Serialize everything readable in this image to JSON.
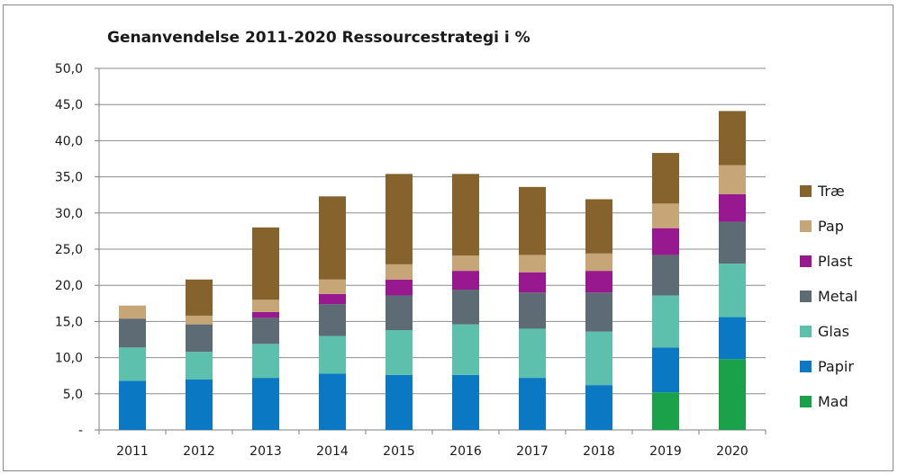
{
  "chart_data": {
    "type": "bar",
    "stacked": true,
    "title": "Genanvendelse 2011-2020 Ressourcestrategi i %",
    "xlabel": "",
    "ylabel": "",
    "ylim": [
      0,
      50
    ],
    "yticks": [
      "-",
      "5,0",
      "10,0",
      "15,0",
      "20,0",
      "25,0",
      "30,0",
      "35,0",
      "40,0",
      "45,0",
      "50,0"
    ],
    "grid": true,
    "legend_position": "right",
    "categories": [
      "2011",
      "2012",
      "2013",
      "2014",
      "2015",
      "2016",
      "2017",
      "2018",
      "2019",
      "2020"
    ],
    "series": [
      {
        "name": "Mad",
        "color": "#1aa14a",
        "values": [
          0,
          0,
          0,
          0,
          0,
          0,
          0,
          0,
          5.2,
          9.8
        ]
      },
      {
        "name": "Papir",
        "color": "#0a78c2",
        "values": [
          6.8,
          7.0,
          7.2,
          7.8,
          7.6,
          7.6,
          7.2,
          6.2,
          6.2,
          5.8
        ]
      },
      {
        "name": "Glas",
        "color": "#5cc0ac",
        "values": [
          4.6,
          3.8,
          4.7,
          5.2,
          6.2,
          7.0,
          6.8,
          7.4,
          7.2,
          7.4
        ]
      },
      {
        "name": "Metal",
        "color": "#5c6b74",
        "values": [
          4.0,
          3.8,
          3.6,
          4.4,
          4.8,
          4.8,
          5.0,
          5.4,
          5.6,
          5.8
        ]
      },
      {
        "name": "Plast",
        "color": "#98188f",
        "values": [
          0,
          0,
          0.8,
          1.4,
          2.2,
          2.6,
          2.8,
          3.0,
          3.7,
          3.8
        ]
      },
      {
        "name": "Pap",
        "color": "#c6a676",
        "values": [
          1.8,
          1.2,
          1.7,
          2.0,
          2.1,
          2.1,
          2.4,
          2.4,
          3.4,
          4.0
        ]
      },
      {
        "name": "Træ",
        "color": "#86632c",
        "values": [
          0,
          5.0,
          10.0,
          11.5,
          12.5,
          11.3,
          9.4,
          7.5,
          7.0,
          7.5
        ]
      }
    ]
  }
}
